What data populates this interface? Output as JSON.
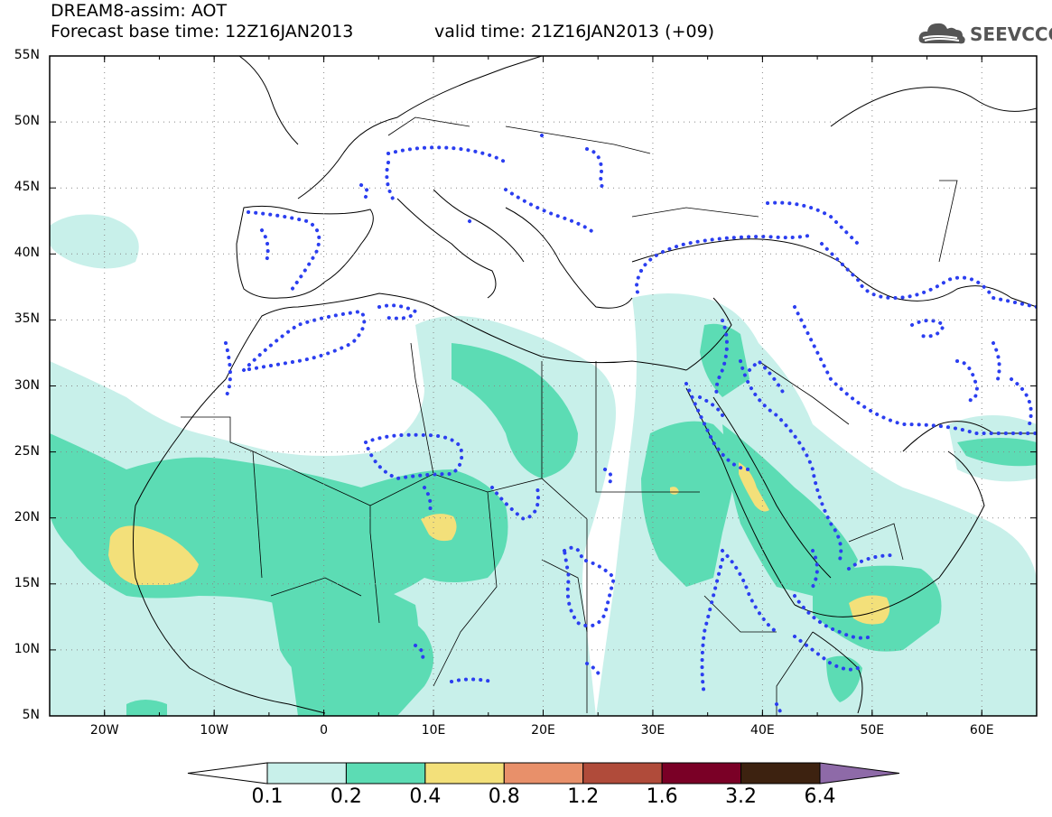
{
  "header": {
    "title": "DREAM8-assim: AOT",
    "base_time": "Forecast base time: 12Z16JAN2013",
    "valid_time": "valid time: 21Z16JAN2013 (+09)"
  },
  "logo": {
    "text": "SEEVCCC",
    "icon": "cloud-icon"
  },
  "map": {
    "lat_labels": [
      "55N",
      "50N",
      "45N",
      "40N",
      "35N",
      "30N",
      "25N",
      "20N",
      "15N",
      "10N",
      "5N"
    ],
    "lon_labels": [
      "20W",
      "10W",
      "0",
      "10E",
      "20E",
      "30E",
      "40E",
      "50E",
      "60E"
    ],
    "lat_range": [
      5,
      55
    ],
    "lon_range": [
      -25,
      65
    ],
    "variable": "AOT"
  },
  "colorbar": {
    "labels": [
      "0.1",
      "0.2",
      "0.4",
      "0.8",
      "1.2",
      "1.6",
      "3.2",
      "6.4"
    ],
    "colors": [
      "#ffffff",
      "#c8f0ea",
      "#5cdcb4",
      "#f3e07a",
      "#e8906a",
      "#b04b3a",
      "#7a0026",
      "#3d2210",
      "#8e6aa8"
    ],
    "contour_color": "#2b3ef0"
  }
}
